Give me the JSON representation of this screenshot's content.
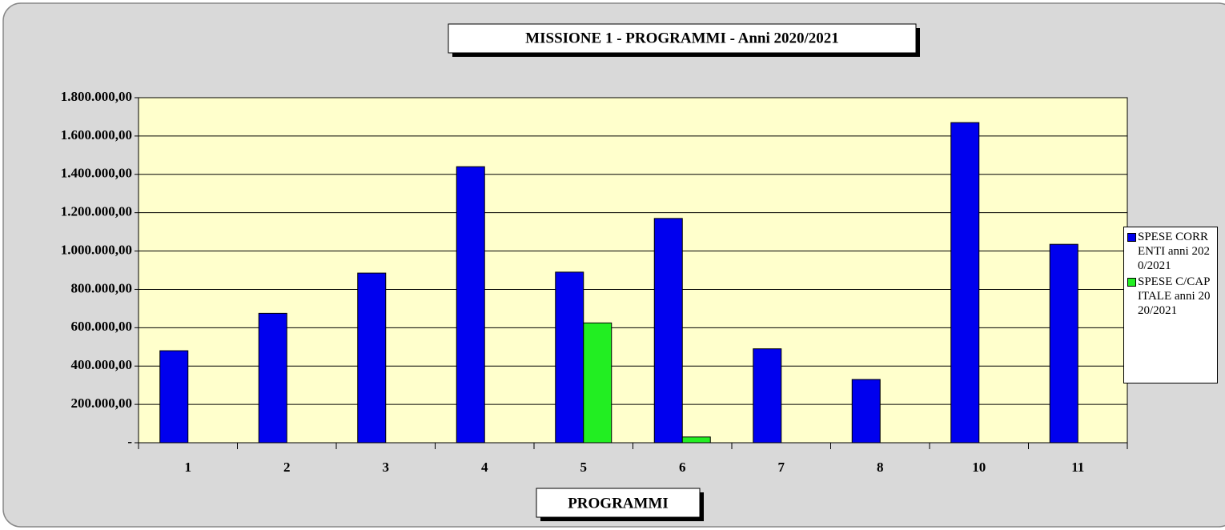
{
  "chart_data": {
    "type": "bar",
    "title": "MISSIONE 1 - PROGRAMMI - Anni 2020/2021",
    "x_label": "PROGRAMMI",
    "categories": [
      "1",
      "2",
      "3",
      "4",
      "5",
      "6",
      "7",
      "8",
      "10",
      "11"
    ],
    "series": [
      {
        "name": "SPESE CORRENTI anni 2020/2021",
        "color": "#0000ee",
        "values": [
          480000,
          675000,
          885000,
          1440000,
          890000,
          1170000,
          490000,
          330000,
          1670000,
          1035000
        ]
      },
      {
        "name": "SPESE C/CAPITALE anni 2020/2021",
        "color": "#22ee22",
        "values": [
          0,
          0,
          0,
          0,
          625000,
          30000,
          0,
          0,
          0,
          0
        ]
      }
    ],
    "ylim": [
      0,
      1800000
    ],
    "yticks": [
      {
        "value": 0,
        "label": "-"
      },
      {
        "value": 200000,
        "label": "200.000,00"
      },
      {
        "value": 400000,
        "label": "400.000,00"
      },
      {
        "value": 600000,
        "label": "600.000,00"
      },
      {
        "value": 800000,
        "label": "800.000,00"
      },
      {
        "value": 1000000,
        "label": "1.000.000,00"
      },
      {
        "value": 1200000,
        "label": "1.200.000,00"
      },
      {
        "value": 1400000,
        "label": "1.400.000,00"
      },
      {
        "value": 1600000,
        "label": "1.600.000,00"
      },
      {
        "value": 1800000,
        "label": "1.800.000,00"
      }
    ],
    "grid": true,
    "legend": "right"
  }
}
